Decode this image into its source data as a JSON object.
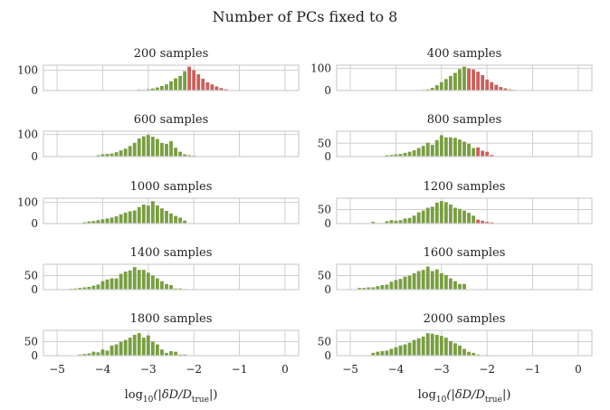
{
  "suptitle": "Number of PCs fixed to 8",
  "xlabel_parts": [
    "log",
    "10",
    "(|δD/D",
    "true",
    "|)"
  ],
  "colors": {
    "green": "#7a9e43",
    "red": "#c8605c",
    "grid": "#cfcfcf"
  },
  "chart_data": [
    {
      "type": "bar",
      "title": "200 samples",
      "xlim": [
        -5.3,
        0.3
      ],
      "ylim": [
        0,
        125
      ],
      "yticks": [
        0,
        100
      ],
      "threshold": -2.1,
      "bin_start": -4.45,
      "bin_width": 0.1,
      "values": [
        1,
        0,
        0,
        0,
        0,
        0,
        2,
        0,
        0,
        1,
        2,
        0,
        4,
        3,
        6,
        10,
        15,
        22,
        30,
        45,
        60,
        72,
        95,
        118,
        100,
        80,
        58,
        40,
        30,
        20,
        12,
        6,
        2
      ]
    },
    {
      "type": "bar",
      "title": "400 samples",
      "xlim": [
        -5.3,
        0.3
      ],
      "ylim": [
        0,
        115
      ],
      "yticks": [
        0,
        100
      ],
      "threshold": -2.45,
      "bin_start": -4.35,
      "bin_width": 0.1,
      "values": [
        1,
        0,
        0,
        0,
        0,
        0,
        0,
        2,
        0,
        3,
        5,
        12,
        24,
        38,
        52,
        66,
        80,
        97,
        108,
        100,
        96,
        85,
        70,
        50,
        38,
        26,
        16,
        10,
        5,
        3,
        0,
        0,
        1
      ]
    },
    {
      "type": "bar",
      "title": "600 samples",
      "xlim": [
        -5.3,
        0.3
      ],
      "ylim": [
        0,
        115
      ],
      "yticks": [
        0,
        100
      ],
      "threshold": -2.1,
      "bin_start": -4.15,
      "bin_width": 0.1,
      "values": [
        6,
        10,
        12,
        14,
        20,
        28,
        36,
        48,
        62,
        82,
        92,
        98,
        90,
        80,
        62,
        58,
        70,
        40,
        22,
        10,
        6,
        4,
        1
      ]
    },
    {
      "type": "bar",
      "title": "800 samples",
      "xlim": [
        -5.3,
        0.3
      ],
      "ylim": [
        0,
        95
      ],
      "yticks": [
        0,
        50
      ],
      "threshold": -2.2,
      "bin_start": -4.25,
      "bin_width": 0.1,
      "values": [
        5,
        6,
        8,
        10,
        14,
        18,
        24,
        32,
        40,
        52,
        44,
        62,
        80,
        72,
        72,
        70,
        64,
        56,
        48,
        32,
        34,
        22,
        18,
        6
      ]
    },
    {
      "type": "bar",
      "title": "1000 samples",
      "xlim": [
        -5.3,
        0.3
      ],
      "ylim": [
        0,
        120
      ],
      "yticks": [
        0,
        100
      ],
      "threshold": -2.0,
      "bin_start": -4.45,
      "bin_width": 0.1,
      "values": [
        6,
        10,
        12,
        16,
        20,
        24,
        28,
        34,
        44,
        52,
        58,
        62,
        78,
        90,
        85,
        106,
        86,
        72,
        60,
        48,
        36,
        28,
        14
      ]
    },
    {
      "type": "bar",
      "title": "1200 samples",
      "xlim": [
        -5.3,
        0.3
      ],
      "ylim": [
        0,
        90
      ],
      "yticks": [
        0,
        50
      ],
      "threshold": -2.2,
      "bin_start": -4.85,
      "bin_width": 0.1,
      "values": [
        2,
        0,
        0,
        6,
        2,
        2,
        8,
        12,
        10,
        12,
        18,
        20,
        28,
        40,
        46,
        56,
        60,
        74,
        80,
        76,
        68,
        56,
        52,
        46,
        38,
        28,
        14,
        10,
        6,
        4
      ]
    },
    {
      "type": "bar",
      "title": "1400 samples",
      "xlim": [
        -5.3,
        0.3
      ],
      "ylim": [
        0,
        90
      ],
      "yticks": [
        0,
        50
      ],
      "threshold": -2.1,
      "bin_start": -4.75,
      "bin_width": 0.1,
      "values": [
        3,
        4,
        6,
        8,
        10,
        14,
        18,
        30,
        36,
        40,
        40,
        56,
        64,
        68,
        80,
        70,
        70,
        60,
        50,
        40,
        30,
        20,
        16,
        4,
        4,
        2
      ]
    },
    {
      "type": "bar",
      "title": "1600 samples",
      "xlim": [
        -5.3,
        0.3
      ],
      "ylim": [
        0,
        90
      ],
      "yticks": [
        0,
        50
      ],
      "threshold": -1.9,
      "bin_start": -4.85,
      "bin_width": 0.1,
      "values": [
        6,
        6,
        8,
        8,
        12,
        16,
        18,
        28,
        34,
        38,
        46,
        50,
        58,
        66,
        70,
        82,
        66,
        72,
        58,
        52,
        40,
        30,
        20,
        20
      ]
    },
    {
      "type": "bar",
      "title": "1800 samples",
      "xlim": [
        -5.3,
        0.3
      ],
      "ylim": [
        0,
        90
      ],
      "yticks": [
        0,
        50
      ],
      "threshold": -1.7,
      "bin_start": -5.05,
      "bin_width": 0.1,
      "values": [
        2,
        0,
        0,
        0,
        0,
        4,
        6,
        8,
        14,
        12,
        22,
        18,
        36,
        40,
        50,
        56,
        64,
        74,
        80,
        64,
        72,
        50,
        40,
        22,
        10,
        16,
        14,
        4,
        4,
        2
      ]
    },
    {
      "type": "bar",
      "title": "2000 samples",
      "xlim": [
        -5.3,
        0.3
      ],
      "ylim": [
        0,
        90
      ],
      "yticks": [
        0,
        50
      ],
      "threshold": -1.8,
      "bin_start": -4.55,
      "bin_width": 0.1,
      "values": [
        10,
        14,
        16,
        18,
        24,
        30,
        36,
        40,
        46,
        56,
        62,
        68,
        80,
        78,
        74,
        70,
        64,
        52,
        44,
        36,
        24,
        14,
        10,
        4,
        0,
        2,
        0,
        2
      ]
    }
  ],
  "xticks": [
    -5,
    -4,
    -3,
    -2,
    -1,
    0
  ],
  "xtick_labels": [
    "−5",
    "−4",
    "−3",
    "−2",
    "−1",
    "0"
  ]
}
